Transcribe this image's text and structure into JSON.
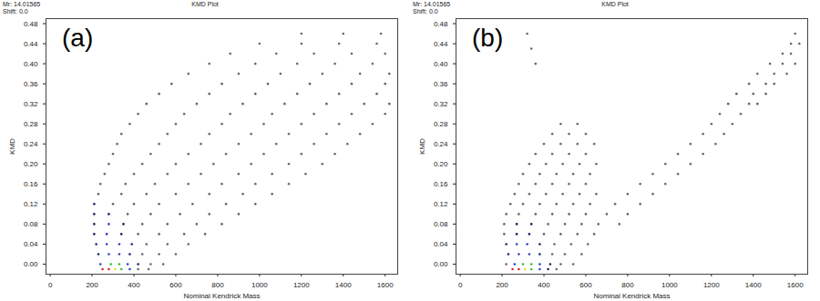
{
  "chart_data": [
    {
      "type": "scatter",
      "title": "KMD Plot",
      "header": [
        "Mr: 14.01565",
        "Shift: 0.0"
      ],
      "panel_label": "(a)",
      "x_label": "Nominal Kendrick Mass",
      "y_label": "KMD",
      "xlim": [
        -20,
        1660
      ],
      "ylim": [
        -0.02,
        0.49
      ],
      "xticks": [
        0,
        200,
        400,
        600,
        800,
        1000,
        1200,
        1400,
        1600
      ],
      "yticks": [
        {
          "value": 0,
          "label": "0.00"
        },
        {
          "value": 0.04,
          "label": "0.04"
        },
        {
          "value": 0.08,
          "label": "0.08"
        },
        {
          "value": 0.12,
          "label": "0.12"
        },
        {
          "value": 0.16,
          "label": "0.16"
        },
        {
          "value": 0.2,
          "label": "0.20"
        },
        {
          "value": 0.24,
          "label": "0.24"
        },
        {
          "value": 0.28,
          "label": "0.28"
        },
        {
          "value": 0.32,
          "label": "0.32"
        },
        {
          "value": 0.36,
          "label": "0.36"
        },
        {
          "value": 0.4,
          "label": "0.40"
        },
        {
          "value": 0.44,
          "label": "0.44"
        },
        {
          "value": 0.48,
          "label": "0.48"
        }
      ],
      "x": [
        250,
        280,
        310,
        340,
        380,
        420,
        470,
        240,
        290,
        330,
        370,
        420,
        480,
        540,
        230,
        280,
        330,
        380,
        440,
        520,
        600,
        220,
        270,
        330,
        390,
        460,
        560,
        660,
        210,
        270,
        340,
        420,
        520,
        640,
        740,
        210,
        280,
        350,
        440,
        560,
        700,
        820,
        210,
        280,
        370,
        480,
        620,
        760,
        900,
        210,
        300,
        400,
        520,
        680,
        840,
        980,
        230,
        340,
        460,
        600,
        760,
        920,
        1060,
        240,
        360,
        500,
        660,
        820,
        980,
        1140,
        260,
        400,
        560,
        720,
        900,
        1060,
        1220,
        280,
        440,
        600,
        780,
        960,
        1140,
        1300,
        300,
        480,
        660,
        840,
        1020,
        1200,
        1360,
        320,
        520,
        720,
        900,
        1080,
        1260,
        1420,
        340,
        560,
        760,
        960,
        1140,
        1320,
        1480,
        380,
        600,
        820,
        1020,
        1200,
        1380,
        1540,
        420,
        640,
        860,
        1060,
        1260,
        1440,
        1600,
        460,
        700,
        920,
        1120,
        1320,
        1500,
        1620,
        520,
        760,
        980,
        1180,
        1380,
        1560,
        580,
        820,
        1040,
        1240,
        1440,
        1600,
        660,
        900,
        1100,
        1300,
        1480,
        1620,
        760,
        980,
        1180,
        1360,
        1540,
        860,
        1080,
        1260,
        1440,
        1600,
        1000,
        1200,
        1380,
        1560,
        1200,
        1400,
        1580
      ],
      "values": [
        -0.01,
        -0.01,
        -0.01,
        -0.01,
        -0.01,
        -0.01,
        -0.01,
        0,
        0,
        0,
        0,
        0,
        0,
        0,
        0.02,
        0.02,
        0.02,
        0.02,
        0.02,
        0.02,
        0.02,
        0.04,
        0.04,
        0.04,
        0.04,
        0.04,
        0.04,
        0.04,
        0.06,
        0.06,
        0.06,
        0.06,
        0.06,
        0.06,
        0.06,
        0.08,
        0.08,
        0.08,
        0.08,
        0.08,
        0.08,
        0.08,
        0.1,
        0.1,
        0.1,
        0.1,
        0.1,
        0.1,
        0.1,
        0.12,
        0.12,
        0.12,
        0.12,
        0.12,
        0.12,
        0.12,
        0.14,
        0.14,
        0.14,
        0.14,
        0.14,
        0.14,
        0.14,
        0.16,
        0.16,
        0.16,
        0.16,
        0.16,
        0.16,
        0.16,
        0.18,
        0.18,
        0.18,
        0.18,
        0.18,
        0.18,
        0.18,
        0.2,
        0.2,
        0.2,
        0.2,
        0.2,
        0.2,
        0.2,
        0.22,
        0.22,
        0.22,
        0.22,
        0.22,
        0.22,
        0.22,
        0.24,
        0.24,
        0.24,
        0.24,
        0.24,
        0.24,
        0.24,
        0.26,
        0.26,
        0.26,
        0.26,
        0.26,
        0.26,
        0.26,
        0.28,
        0.28,
        0.28,
        0.28,
        0.28,
        0.28,
        0.28,
        0.3,
        0.3,
        0.3,
        0.3,
        0.3,
        0.3,
        0.3,
        0.32,
        0.32,
        0.32,
        0.32,
        0.32,
        0.32,
        0.32,
        0.34,
        0.34,
        0.34,
        0.34,
        0.34,
        0.34,
        0.36,
        0.36,
        0.36,
        0.36,
        0.36,
        0.36,
        0.38,
        0.38,
        0.38,
        0.38,
        0.38,
        0.38,
        0.4,
        0.4,
        0.4,
        0.4,
        0.4,
        0.42,
        0.42,
        0.42,
        0.42,
        0.42,
        0.44,
        0.44,
        0.44,
        0.44,
        0.46,
        0.46,
        0.46
      ],
      "colors": [
        "#e02020",
        "#e02020",
        "#f0e020",
        "#30c030",
        "#3040c0",
        "#666666",
        "#666666",
        "#3040c0",
        "#30c030",
        "#30c030",
        "#3040c0",
        "#202060",
        "#666666",
        "#666666",
        "#202060",
        "#3040c0",
        "#3040c0",
        "#202060",
        "#666666",
        "#666666",
        "#666666",
        "#202060",
        "#3040c0",
        "#3040c0",
        "#202060",
        "#666666",
        "#666666",
        "#666666",
        "#202060",
        "#3040c0",
        "#202060",
        "#666666",
        "#666666",
        "#666666",
        "#666666",
        "#202060",
        "#3040c0",
        "#202060",
        "#666666",
        "#666666",
        "#666666",
        "#666666",
        "#202060",
        "#202060",
        "#666666",
        "#666666",
        "#666666",
        "#666666",
        "#666666",
        "#202060",
        "#666666",
        "#666666",
        "#666666",
        "#666666",
        "#666666",
        "#666666",
        "#666666",
        "#666666",
        "#666666",
        "#666666",
        "#666666",
        "#666666",
        "#666666",
        "#666666",
        "#666666",
        "#666666",
        "#666666",
        "#666666",
        "#666666",
        "#666666",
        "#666666",
        "#666666",
        "#666666",
        "#666666",
        "#666666",
        "#666666",
        "#666666",
        "#666666",
        "#666666",
        "#666666",
        "#666666",
        "#666666",
        "#666666",
        "#666666",
        "#666666",
        "#666666",
        "#666666",
        "#666666",
        "#666666",
        "#666666",
        "#666666",
        "#666666",
        "#666666",
        "#666666",
        "#666666",
        "#666666",
        "#666666",
        "#666666",
        "#666666",
        "#666666",
        "#666666",
        "#666666",
        "#666666",
        "#666666",
        "#666666",
        "#666666",
        "#666666",
        "#666666",
        "#666666",
        "#666666",
        "#666666",
        "#666666",
        "#666666",
        "#666666",
        "#666666",
        "#666666",
        "#666666",
        "#666666",
        "#666666",
        "#666666",
        "#666666",
        "#666666",
        "#666666",
        "#666666",
        "#666666",
        "#666666",
        "#666666",
        "#666666",
        "#666666",
        "#666666",
        "#666666",
        "#666666",
        "#666666",
        "#666666",
        "#666666",
        "#666666",
        "#666666",
        "#666666",
        "#666666",
        "#666666",
        "#666666",
        "#666666",
        "#666666",
        "#666666",
        "#666666",
        "#666666",
        "#666666",
        "#666666",
        "#666666",
        "#666666",
        "#666666",
        "#666666",
        "#666666",
        "#666666",
        "#666666",
        "#666666",
        "#666666",
        "#666666",
        "#666666",
        "#666666",
        "#666666"
      ]
    },
    {
      "type": "scatter",
      "title": "KMD Plot",
      "header": [
        "Mr: 14.01565",
        "Shift: 0.0"
      ],
      "panel_label": "(b)",
      "x_label": "Nominal Kendrick Mass",
      "y_label": "KMD",
      "xlim": [
        -20,
        1660
      ],
      "ylim": [
        -0.02,
        0.49
      ],
      "xticks": [
        0,
        200,
        400,
        600,
        800,
        1000,
        1200,
        1400,
        1600
      ],
      "yticks": [
        {
          "value": 0,
          "label": "0.00"
        },
        {
          "value": 0.04,
          "label": "0.04"
        },
        {
          "value": 0.08,
          "label": "0.08"
        },
        {
          "value": 0.12,
          "label": "0.12"
        },
        {
          "value": 0.16,
          "label": "0.16"
        },
        {
          "value": 0.2,
          "label": "0.20"
        },
        {
          "value": 0.24,
          "label": "0.24"
        },
        {
          "value": 0.28,
          "label": "0.28"
        },
        {
          "value": 0.32,
          "label": "0.32"
        },
        {
          "value": 0.36,
          "label": "0.36"
        },
        {
          "value": 0.4,
          "label": "0.40"
        },
        {
          "value": 0.44,
          "label": "0.44"
        },
        {
          "value": 0.48,
          "label": "0.48"
        }
      ],
      "x": [
        250,
        280,
        310,
        340,
        380,
        420,
        460,
        220,
        260,
        300,
        340,
        380,
        430,
        480,
        540,
        230,
        280,
        330,
        380,
        440,
        500,
        580,
        220,
        270,
        320,
        380,
        450,
        530,
        610,
        210,
        270,
        330,
        400,
        480,
        560,
        640,
        210,
        270,
        340,
        420,
        500,
        580,
        660,
        760,
        220,
        280,
        360,
        440,
        520,
        600,
        700,
        800,
        240,
        300,
        380,
        460,
        540,
        620,
        740,
        860,
        260,
        330,
        410,
        490,
        570,
        650,
        800,
        920,
        280,
        360,
        440,
        520,
        600,
        860,
        980,
        300,
        380,
        460,
        540,
        620,
        920,
        1040,
        330,
        410,
        490,
        570,
        650,
        980,
        1100,
        360,
        440,
        520,
        600,
        1040,
        1160,
        400,
        480,
        560,
        640,
        1100,
        1220,
        440,
        520,
        600,
        1160,
        1260,
        480,
        560,
        1200,
        1300,
        1240,
        1340,
        1280,
        1380,
        1420,
        1320,
        1400,
        1460,
        1380,
        1460,
        1500,
        1420,
        1500,
        1560,
        1480,
        1540,
        1600,
        1540,
        1580,
        1580,
        1620,
        1600,
        320,
        340,
        360
      ],
      "values": [
        -0.01,
        -0.01,
        -0.01,
        -0.01,
        -0.01,
        -0.01,
        -0.01,
        0,
        0,
        0,
        0,
        0,
        0,
        0,
        0,
        0.02,
        0.02,
        0.02,
        0.02,
        0.02,
        0.02,
        0.02,
        0.04,
        0.04,
        0.04,
        0.04,
        0.04,
        0.04,
        0.04,
        0.06,
        0.06,
        0.06,
        0.06,
        0.06,
        0.06,
        0.06,
        0.08,
        0.08,
        0.08,
        0.08,
        0.08,
        0.08,
        0.08,
        0.08,
        0.1,
        0.1,
        0.1,
        0.1,
        0.1,
        0.1,
        0.1,
        0.1,
        0.12,
        0.12,
        0.12,
        0.12,
        0.12,
        0.12,
        0.12,
        0.12,
        0.14,
        0.14,
        0.14,
        0.14,
        0.14,
        0.14,
        0.14,
        0.14,
        0.16,
        0.16,
        0.16,
        0.16,
        0.16,
        0.16,
        0.16,
        0.18,
        0.18,
        0.18,
        0.18,
        0.18,
        0.18,
        0.18,
        0.2,
        0.2,
        0.2,
        0.2,
        0.2,
        0.2,
        0.2,
        0.22,
        0.22,
        0.22,
        0.22,
        0.22,
        0.22,
        0.24,
        0.24,
        0.24,
        0.24,
        0.24,
        0.24,
        0.26,
        0.26,
        0.26,
        0.26,
        0.26,
        0.28,
        0.28,
        0.28,
        0.28,
        0.3,
        0.3,
        0.32,
        0.32,
        0.32,
        0.34,
        0.34,
        0.34,
        0.36,
        0.36,
        0.36,
        0.38,
        0.38,
        0.38,
        0.4,
        0.4,
        0.4,
        0.42,
        0.42,
        0.44,
        0.44,
        0.46,
        0.46,
        0.43,
        0.4
      ],
      "colors": [
        "#e02020",
        "#e02020",
        "#f0e020",
        "#30c030",
        "#3040c0",
        "#202060",
        "#666666",
        "#666666",
        "#3040c0",
        "#30c030",
        "#30c030",
        "#3040c0",
        "#202060",
        "#666666",
        "#666666",
        "#202060",
        "#3040c0",
        "#3040c0",
        "#202060",
        "#666666",
        "#666666",
        "#666666",
        "#202060",
        "#3040c0",
        "#3040c0",
        "#202060",
        "#666666",
        "#666666",
        "#666666",
        "#666666",
        "#202060",
        "#202060",
        "#666666",
        "#666666",
        "#666666",
        "#666666",
        "#666666",
        "#202060",
        "#202060",
        "#666666",
        "#666666",
        "#666666",
        "#666666",
        "#666666",
        "#666666",
        "#666666",
        "#666666",
        "#666666",
        "#666666",
        "#666666",
        "#666666",
        "#666666",
        "#666666",
        "#666666",
        "#666666",
        "#666666",
        "#666666",
        "#666666",
        "#666666",
        "#666666",
        "#666666",
        "#666666",
        "#666666",
        "#666666",
        "#666666",
        "#666666",
        "#666666",
        "#666666",
        "#666666",
        "#666666",
        "#666666",
        "#666666",
        "#666666",
        "#666666",
        "#666666",
        "#666666",
        "#666666",
        "#666666",
        "#666666",
        "#666666",
        "#666666",
        "#666666",
        "#666666",
        "#666666",
        "#666666",
        "#666666",
        "#666666",
        "#666666",
        "#666666",
        "#666666",
        "#666666",
        "#666666",
        "#666666",
        "#666666",
        "#666666",
        "#666666",
        "#666666",
        "#666666",
        "#666666",
        "#666666",
        "#666666",
        "#666666",
        "#666666",
        "#666666",
        "#666666",
        "#666666",
        "#666666",
        "#666666",
        "#666666",
        "#666666",
        "#666666",
        "#666666",
        "#666666",
        "#666666",
        "#666666",
        "#666666",
        "#666666",
        "#666666",
        "#666666",
        "#666666",
        "#666666",
        "#666666",
        "#666666",
        "#666666",
        "#666666",
        "#666666",
        "#666666",
        "#666666",
        "#666666",
        "#666666",
        "#666666",
        "#666666",
        "#666666",
        "#666666",
        "#666666"
      ]
    }
  ]
}
